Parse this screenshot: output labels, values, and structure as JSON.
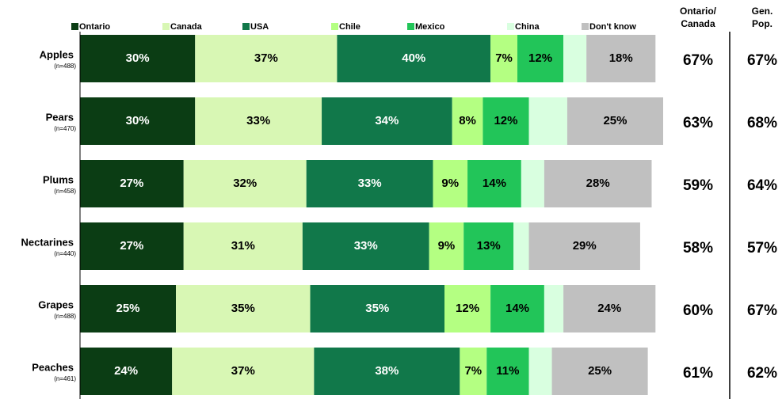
{
  "chart_data": {
    "type": "stacked-bar-horizontal",
    "categories": [
      "Apples",
      "Pears",
      "Plums",
      "Nectarines",
      "Grapes",
      "Peaches"
    ],
    "sample_sizes": [
      "(n=488)",
      "(n=470)",
      "(n=458)",
      "(n=440)",
      "(n=488)",
      "(n=461)"
    ],
    "series": [
      {
        "name": "Ontario",
        "color": "#0b3d14",
        "values": [
          30,
          30,
          27,
          27,
          25,
          24
        ],
        "value_labels": [
          "30%",
          "30%",
          "27%",
          "27%",
          "25%",
          "24%"
        ]
      },
      {
        "name": "Canada",
        "color": "#d8f7b4",
        "values": [
          37,
          33,
          32,
          31,
          35,
          37
        ],
        "value_labels": [
          "37%",
          "33%",
          "32%",
          "31%",
          "35%",
          "37%"
        ]
      },
      {
        "name": "USA",
        "color": "#11784a",
        "values": [
          40,
          34,
          33,
          33,
          35,
          38
        ],
        "value_labels": [
          "40%",
          "34%",
          "33%",
          "33%",
          "35%",
          "38%"
        ]
      },
      {
        "name": "Chile",
        "color": "#b4ff82",
        "values": [
          7,
          8,
          9,
          9,
          12,
          7
        ],
        "value_labels": [
          "7%",
          "8%",
          "9%",
          "9%",
          "12%",
          "7%"
        ]
      },
      {
        "name": "Mexico",
        "color": "#22c559",
        "values": [
          12,
          12,
          14,
          13,
          14,
          11
        ],
        "value_labels": [
          "12%",
          "12%",
          "14%",
          "13%",
          "14%",
          "11%"
        ]
      },
      {
        "name": "China",
        "color": "#d9ffe0",
        "values": [
          6,
          10,
          6,
          4,
          5,
          6
        ],
        "value_labels": [
          null,
          null,
          null,
          null,
          null,
          null
        ]
      },
      {
        "name": "Don't know",
        "color": "#c0c0c0",
        "values": [
          18,
          25,
          28,
          29,
          24,
          25
        ],
        "value_labels": [
          "18%",
          "25%",
          "28%",
          "29%",
          "24%",
          "25%"
        ]
      }
    ],
    "summary_columns": [
      {
        "header": [
          "Ontario/",
          "Canada"
        ],
        "values": [
          67,
          63,
          59,
          58,
          60,
          61
        ],
        "value_labels": [
          "67%",
          "63%",
          "59%",
          "58%",
          "60%",
          "61%"
        ]
      },
      {
        "header": [
          "Gen.",
          "Pop."
        ],
        "values": [
          67,
          68,
          64,
          57,
          67,
          62
        ],
        "value_labels": [
          "67%",
          "68%",
          "64%",
          "57%",
          "67%",
          "62%"
        ]
      }
    ]
  }
}
